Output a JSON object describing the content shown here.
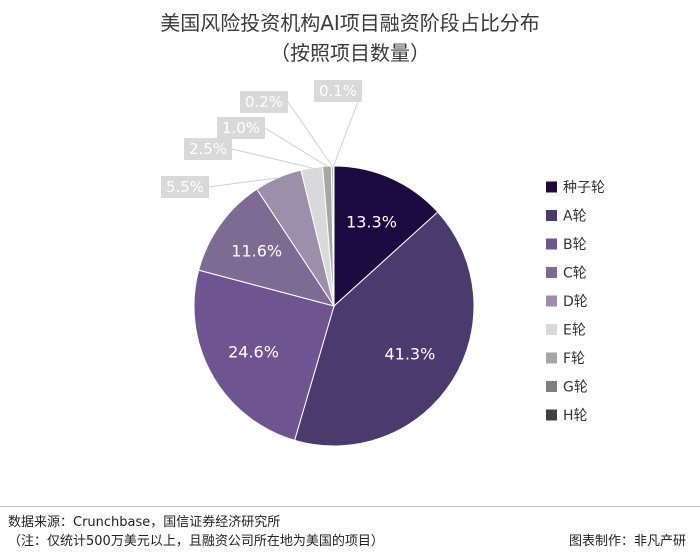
{
  "title": {
    "line1": "美国风险投资机构AI项目融资阶段占比分布",
    "line2": "（按照项目数量）"
  },
  "chart_data": {
    "type": "pie",
    "title": "美国风险投资机构AI项目融资阶段占比分布（按照项目数量）",
    "categories": [
      "种子轮",
      "A轮",
      "B轮",
      "C轮",
      "D轮",
      "E轮",
      "F轮",
      "G轮",
      "H轮"
    ],
    "values": [
      13.3,
      41.3,
      24.6,
      11.6,
      5.5,
      2.5,
      1.0,
      0.2,
      0.1
    ],
    "labels": [
      "13.3%",
      "41.3%",
      "24.6%",
      "11.6%",
      "5.5%",
      "2.5%",
      "1.0%",
      "0.2%",
      "0.1%"
    ],
    "colors": [
      "#1c0b40",
      "#4b3a6e",
      "#6e5490",
      "#7d6b94",
      "#9c8fac",
      "#d9d9d9",
      "#a6a6a6",
      "#7f7f7f",
      "#404040"
    ],
    "legend_position": "right",
    "start_angle": "12 o'clock, clockwise"
  },
  "footer": {
    "source": "数据来源：Crunchbase，国信证券经济研究所",
    "note": "（注：仅统计500万美元以上，且融资公司所在地为美国的项目）",
    "credit": "图表制作：非凡产研"
  }
}
